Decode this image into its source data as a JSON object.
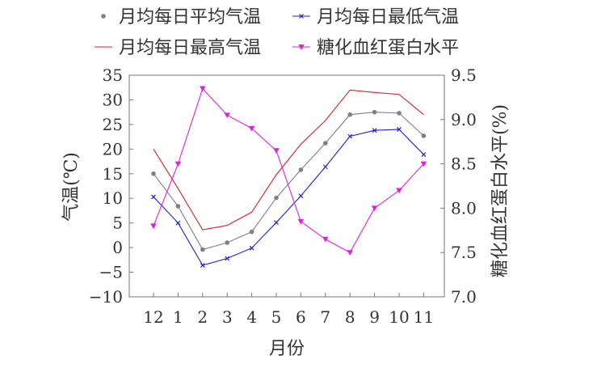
{
  "chart_data": {
    "type": "line",
    "categories": [
      "12",
      "1",
      "2",
      "3",
      "4",
      "5",
      "6",
      "7",
      "8",
      "9",
      "10",
      "11"
    ],
    "xlabel": "月份",
    "ylabel_left": "气温(℃)",
    "ylabel_right": "糖化血红蛋白水平(%)",
    "ylim_left": [
      -10,
      35
    ],
    "yticks_left": [
      "35",
      "30",
      "25",
      "20",
      "15",
      "10",
      "5",
      "0",
      "−5",
      "−10"
    ],
    "ylim_right": [
      7.0,
      9.5
    ],
    "yticks_right": [
      "9.5",
      "9.0",
      "8.5",
      "8.0",
      "7.5",
      "7.0"
    ],
    "grid": false,
    "legend_position": "top",
    "series": [
      {
        "name": "月均每日平均气温",
        "axis": "left",
        "color": "#808080",
        "marker": "circle",
        "values": [
          15.0,
          8.4,
          -0.4,
          1.0,
          3.2,
          10.1,
          15.8,
          21.2,
          27.0,
          27.5,
          27.3,
          22.7
        ]
      },
      {
        "name": "月均每日最低气温",
        "axis": "left",
        "color": "#1f1fd6",
        "marker": "x",
        "values": [
          10.3,
          5.0,
          -3.6,
          -2.2,
          -0.1,
          5.1,
          10.5,
          16.4,
          22.6,
          23.8,
          24.0,
          18.9
        ]
      },
      {
        "name": "月均每日最高气温",
        "axis": "left",
        "color": "#d62020",
        "marker": "none",
        "values": [
          20.0,
          12.0,
          3.6,
          4.5,
          7.2,
          14.8,
          21.0,
          25.8,
          32.0,
          31.5,
          31.1,
          27.0
        ]
      },
      {
        "name": "糖化血红蛋白水平",
        "axis": "right",
        "color": "#e020e0",
        "marker": "triangle-down",
        "values": [
          7.8,
          8.5,
          9.35,
          9.05,
          8.9,
          8.65,
          7.85,
          7.65,
          7.5,
          8.0,
          8.2,
          8.5
        ]
      }
    ]
  }
}
